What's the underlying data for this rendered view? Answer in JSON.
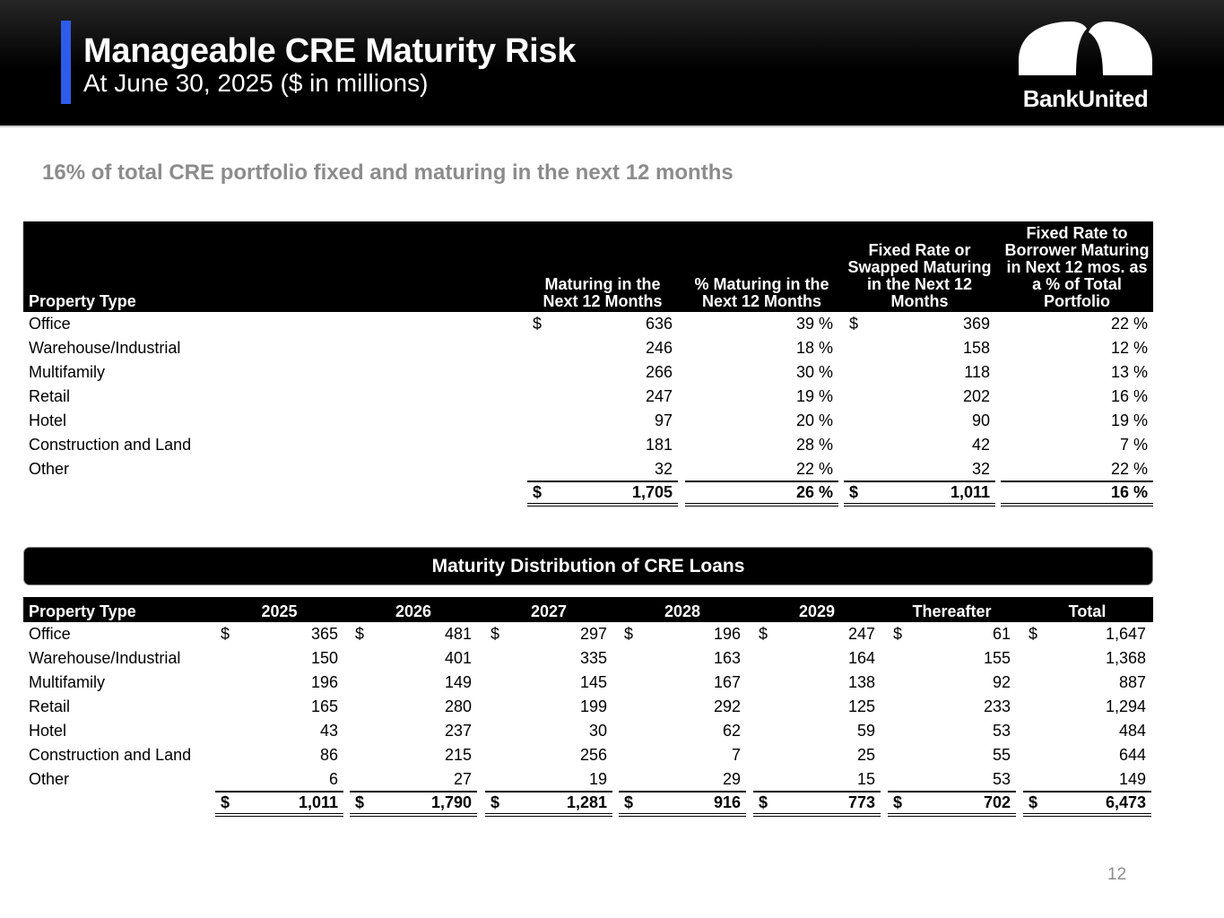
{
  "header": {
    "title": "Manageable CRE Maturity Risk",
    "subtitle": "At June 30, 2025 ($ in millions)",
    "logo_text": "BankUnited"
  },
  "headline": "16% of total CRE portfolio fixed and maturing in the next 12 months",
  "table1": {
    "columns": [
      "Property Type",
      "Maturing in the Next 12 Months",
      "% Maturing in the Next 12 Months",
      "Fixed Rate or Swapped Maturing in the Next 12 Months",
      "Fixed Rate to Borrower Maturing in Next 12 mos. as a % of Total Portfolio"
    ],
    "rows": [
      [
        "Office",
        "636",
        "39 %",
        "369",
        "22 %"
      ],
      [
        "Warehouse/Industrial",
        "246",
        "18 %",
        "158",
        "12 %"
      ],
      [
        "Multifamily",
        "266",
        "30 %",
        "118",
        "13 %"
      ],
      [
        "Retail",
        "247",
        "19 %",
        "202",
        "16 %"
      ],
      [
        "Hotel",
        "97",
        "20 %",
        "90",
        "19 %"
      ],
      [
        "Construction and Land",
        "181",
        "28 %",
        "42",
        "7 %"
      ],
      [
        "Other",
        "32",
        "22 %",
        "32",
        "22 %"
      ]
    ],
    "total": [
      "",
      "1,705",
      "26 %",
      "1,011",
      "16 %"
    ],
    "currency": "$"
  },
  "banner": "Maturity Distribution of CRE Loans",
  "table2": {
    "columns": [
      "Property Type",
      "2025",
      "2026",
      "2027",
      "2028",
      "2029",
      "Thereafter",
      "Total"
    ],
    "rows": [
      [
        "Office",
        "365",
        "481",
        "297",
        "196",
        "247",
        "61",
        "1,647"
      ],
      [
        "Warehouse/Industrial",
        "150",
        "401",
        "335",
        "163",
        "164",
        "155",
        "1,368"
      ],
      [
        "Multifamily",
        "196",
        "149",
        "145",
        "167",
        "138",
        "92",
        "887"
      ],
      [
        "Retail",
        "165",
        "280",
        "199",
        "292",
        "125",
        "233",
        "1,294"
      ],
      [
        "Hotel",
        "43",
        "237",
        "30",
        "62",
        "59",
        "53",
        "484"
      ],
      [
        "Construction and Land",
        "86",
        "215",
        "256",
        "7",
        "25",
        "55",
        "644"
      ],
      [
        "Other",
        "6",
        "27",
        "19",
        "29",
        "15",
        "53",
        "149"
      ]
    ],
    "total": [
      "",
      "1,011",
      "1,790",
      "1,281",
      "916",
      "773",
      "702",
      "6,473"
    ],
    "currency": "$"
  },
  "page_number": "12"
}
